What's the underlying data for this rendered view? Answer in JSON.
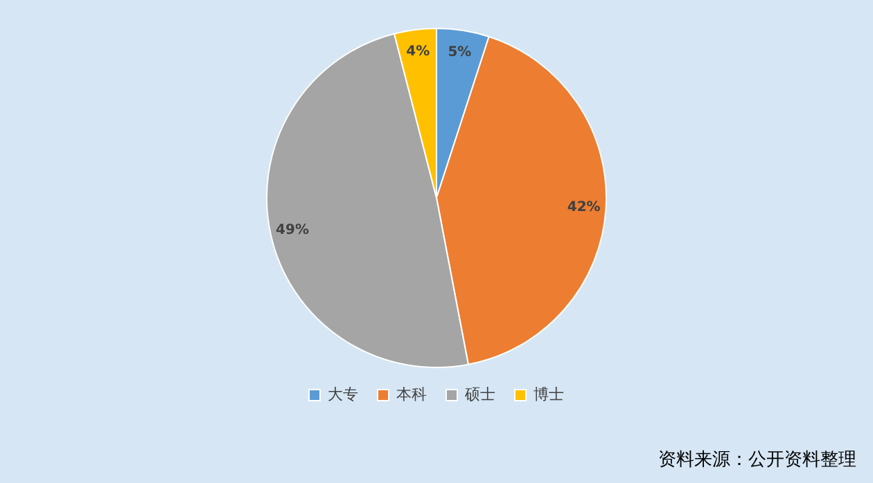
{
  "chart_data": {
    "type": "pie",
    "categories": [
      "大专",
      "本科",
      "硕士",
      "博士"
    ],
    "values": [
      5,
      42,
      49,
      4
    ],
    "colors": [
      "#5b9bd5",
      "#ed7d31",
      "#a5a5a5",
      "#ffc000"
    ],
    "value_labels": [
      "5%",
      "42%",
      "49%",
      "4%"
    ],
    "legend": "bottom",
    "annotations": [
      "资料来源：公开资料整理"
    ]
  }
}
